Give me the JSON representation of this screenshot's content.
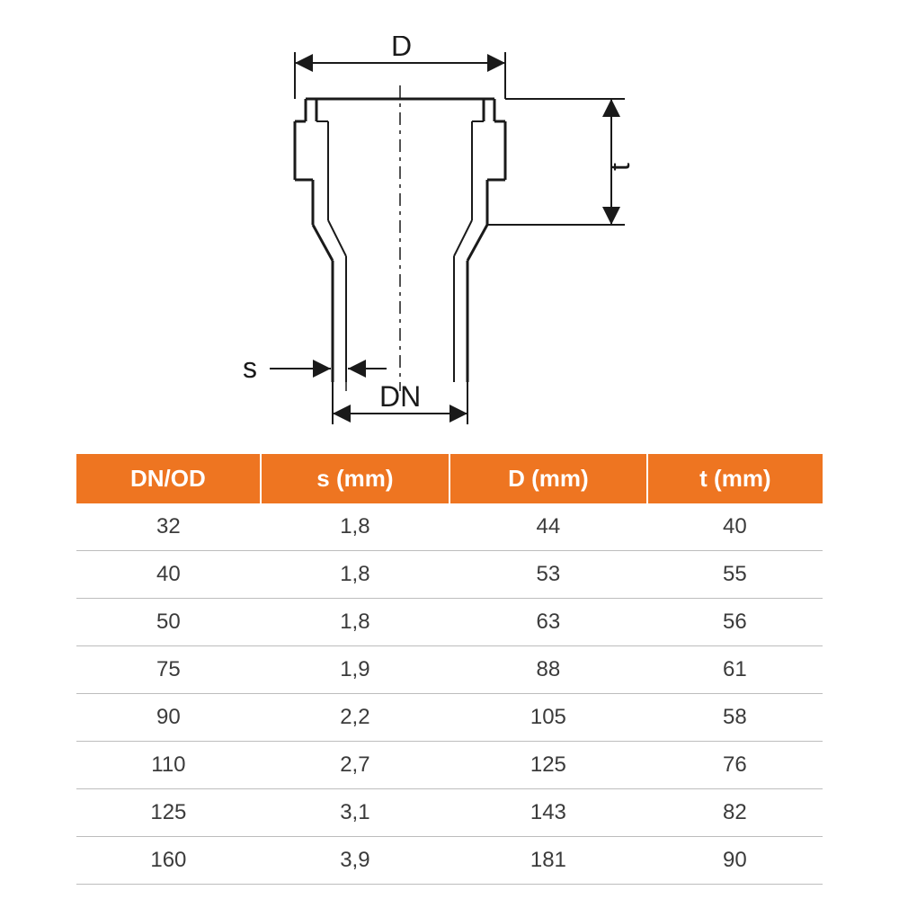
{
  "diagram": {
    "labels": {
      "D": "D",
      "t": "t",
      "s": "s",
      "DN": "DN"
    },
    "stroke_color": "#1a1a1a",
    "stroke_width_main": 3,
    "stroke_width_thin": 2,
    "arrow_size": 10
  },
  "table": {
    "header_bg": "#ee7521",
    "header_fg": "#ffffff",
    "row_fg": "#3b3b3b",
    "border_color": "#bdbdbd",
    "header_fontsize": 26,
    "cell_fontsize": 24,
    "columns": [
      "DN/OD",
      "s (mm)",
      "D (mm)",
      "t (mm)"
    ],
    "rows": [
      [
        "32",
        "1,8",
        "44",
        "40"
      ],
      [
        "40",
        "1,8",
        "53",
        "55"
      ],
      [
        "50",
        "1,8",
        "63",
        "56"
      ],
      [
        "75",
        "1,9",
        "88",
        "61"
      ],
      [
        "90",
        "2,2",
        "105",
        "58"
      ],
      [
        "110",
        "2,7",
        "125",
        "76"
      ],
      [
        "125",
        "3,1",
        "143",
        "82"
      ],
      [
        "160",
        "3,9",
        "181",
        "90"
      ]
    ]
  }
}
